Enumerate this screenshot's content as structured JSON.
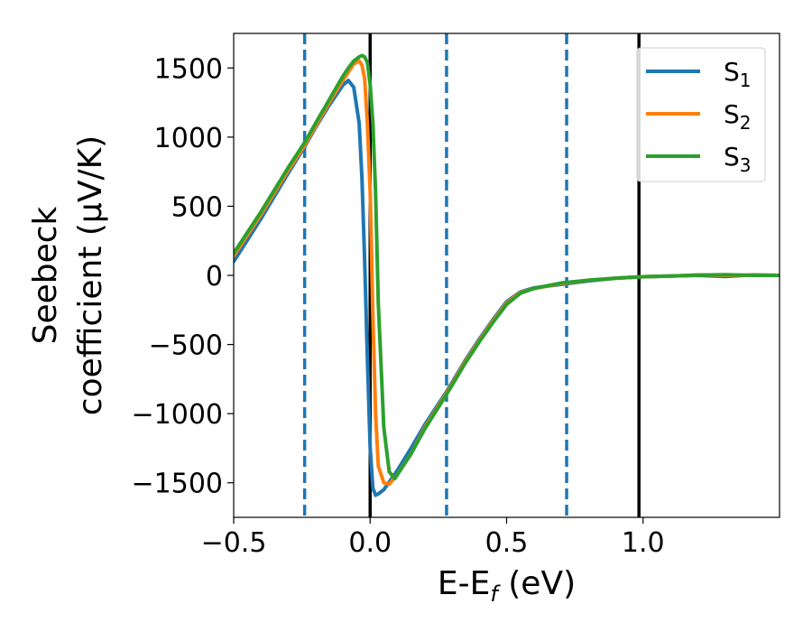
{
  "chart_data": {
    "type": "line",
    "xlabel_main": "E-E",
    "xlabel_sub": "f",
    "xlabel_tail": " (eV)",
    "ylabel_line1": "Seebeck",
    "ylabel_line2": "coefficient  (μV/K)",
    "xlim": [
      -0.5,
      1.5
    ],
    "ylim": [
      -1750,
      1750
    ],
    "xticks": [
      {
        "value": -0.5,
        "label": "−0.5"
      },
      {
        "value": 0.0,
        "label": "0.0"
      },
      {
        "value": 0.5,
        "label": "0.5"
      },
      {
        "value": 1.0,
        "label": "1.0"
      }
    ],
    "yticks": [
      {
        "value": 1500,
        "label": "1500"
      },
      {
        "value": 1000,
        "label": "1000"
      },
      {
        "value": 500,
        "label": "500"
      },
      {
        "value": 0,
        "label": "0"
      },
      {
        "value": -500,
        "label": "−500"
      },
      {
        "value": -1000,
        "label": "−1000"
      },
      {
        "value": -1500,
        "label": "−1500"
      }
    ],
    "vlines": [
      {
        "x": -0.24,
        "style": "dashed",
        "color": "#1f77b4"
      },
      {
        "x": 0.0,
        "style": "solid",
        "color": "#000000"
      },
      {
        "x": 0.28,
        "style": "dashed",
        "color": "#1f77b4"
      },
      {
        "x": 0.72,
        "style": "dashed",
        "color": "#1f77b4"
      },
      {
        "x": 0.985,
        "style": "solid",
        "color": "#000000"
      }
    ],
    "legend_position": "top-right",
    "series": [
      {
        "name": "S",
        "sub": "1",
        "color": "#1f77b4",
        "x": [
          -0.5,
          -0.4,
          -0.3,
          -0.24,
          -0.2,
          -0.15,
          -0.1,
          -0.08,
          -0.06,
          -0.04,
          -0.03,
          -0.02,
          -0.01,
          0.0,
          0.01,
          0.02,
          0.03,
          0.05,
          0.1,
          0.15,
          0.2,
          0.28,
          0.35,
          0.4,
          0.45,
          0.5,
          0.55,
          0.6,
          0.7,
          0.8,
          0.9,
          1.0,
          1.1,
          1.2,
          1.3,
          1.4,
          1.5
        ],
        "y": [
          100,
          410,
          740,
          930,
          1070,
          1230,
          1375,
          1410,
          1360,
          1100,
          700,
          100,
          -600,
          -1250,
          -1540,
          -1590,
          -1580,
          -1550,
          -1410,
          -1250,
          -1080,
          -840,
          -610,
          -460,
          -320,
          -190,
          -120,
          -90,
          -65,
          -40,
          -20,
          -10,
          -5,
          0,
          -8,
          3,
          0
        ]
      },
      {
        "name": "S",
        "sub": "2",
        "color": "#ff7f0e",
        "x": [
          -0.5,
          -0.4,
          -0.3,
          -0.24,
          -0.2,
          -0.15,
          -0.1,
          -0.08,
          -0.06,
          -0.04,
          -0.03,
          -0.02,
          -0.01,
          0.0,
          0.01,
          0.02,
          0.03,
          0.05,
          0.07,
          0.1,
          0.15,
          0.2,
          0.28,
          0.35,
          0.4,
          0.45,
          0.5,
          0.55,
          0.6,
          0.7,
          0.8,
          0.9,
          1.0,
          1.1,
          1.2,
          1.3,
          1.4,
          1.5
        ],
        "y": [
          140,
          440,
          760,
          940,
          1080,
          1250,
          1410,
          1470,
          1530,
          1550,
          1520,
          1420,
          1100,
          600,
          -300,
          -1000,
          -1380,
          -1500,
          -1510,
          -1440,
          -1290,
          -1100,
          -850,
          -620,
          -470,
          -330,
          -200,
          -125,
          -95,
          -60,
          -35,
          -20,
          -10,
          -5,
          3,
          0,
          2,
          0
        ]
      },
      {
        "name": "S",
        "sub": "3",
        "color": "#2ca02c",
        "x": [
          -0.5,
          -0.4,
          -0.3,
          -0.24,
          -0.2,
          -0.15,
          -0.1,
          -0.08,
          -0.06,
          -0.04,
          -0.03,
          -0.02,
          -0.01,
          0.0,
          0.01,
          0.02,
          0.03,
          0.05,
          0.07,
          0.09,
          0.12,
          0.15,
          0.2,
          0.28,
          0.35,
          0.4,
          0.45,
          0.5,
          0.55,
          0.6,
          0.7,
          0.8,
          0.9,
          1.0,
          1.1,
          1.2,
          1.3,
          1.4,
          1.5
        ],
        "y": [
          160,
          460,
          780,
          960,
          1100,
          1270,
          1440,
          1500,
          1550,
          1580,
          1590,
          1580,
          1540,
          1380,
          1100,
          600,
          -200,
          -1100,
          -1420,
          -1470,
          -1380,
          -1290,
          -1110,
          -860,
          -630,
          -480,
          -340,
          -210,
          -130,
          -95,
          -55,
          -35,
          -20,
          -10,
          -5,
          2,
          5,
          0,
          0
        ]
      }
    ]
  }
}
